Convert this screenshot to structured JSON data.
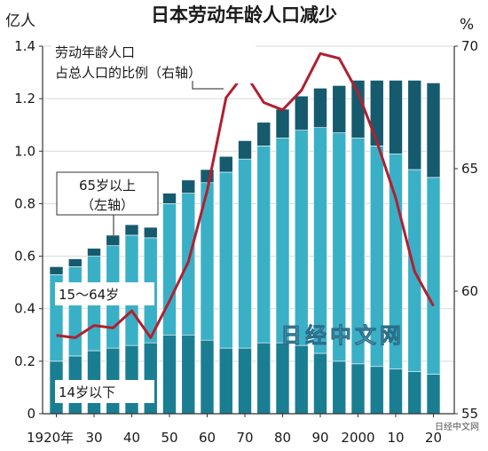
{
  "chart_data": {
    "type": "bar",
    "stacked": true,
    "title": "日本劳动年龄人口减少",
    "left_axis": {
      "unit": "亿人",
      "range": [
        0,
        1.4
      ],
      "ticks": [
        {
          "value": 0,
          "label": "0"
        },
        {
          "value": 0.2,
          "label": "0.2"
        },
        {
          "value": 0.4,
          "label": "0.4"
        },
        {
          "value": 0.6,
          "label": "0.6"
        },
        {
          "value": 0.8,
          "label": "0.8"
        },
        {
          "value": 1.0,
          "label": "1.0"
        },
        {
          "value": 1.2,
          "label": "1.2"
        },
        {
          "value": 1.4,
          "label": "1.4"
        }
      ]
    },
    "right_axis": {
      "unit": "%",
      "range": [
        55,
        70
      ],
      "ticks": [
        {
          "value": 55,
          "label": "55"
        },
        {
          "value": 60,
          "label": "60"
        },
        {
          "value": 65,
          "label": "65"
        },
        {
          "value": 70,
          "label": "70"
        }
      ]
    },
    "x_ticks": [
      {
        "year": 1920,
        "label": "1920年"
      },
      {
        "year": 1930,
        "label": "30"
      },
      {
        "year": 1940,
        "label": "40"
      },
      {
        "year": 1950,
        "label": "50"
      },
      {
        "year": 1960,
        "label": "60"
      },
      {
        "year": 1970,
        "label": "70"
      },
      {
        "year": 1980,
        "label": "80"
      },
      {
        "year": 1990,
        "label": "90"
      },
      {
        "year": 2000,
        "label": "2000"
      },
      {
        "year": 2010,
        "label": "10"
      },
      {
        "year": 2020,
        "label": "20"
      }
    ],
    "x": [
      1920,
      1925,
      1930,
      1935,
      1940,
      1945,
      1950,
      1955,
      1960,
      1965,
      1970,
      1975,
      1980,
      1985,
      1990,
      1995,
      2000,
      2005,
      2010,
      2015,
      2020
    ],
    "series": [
      {
        "name": "14岁以下",
        "axis": "left",
        "color": "#1a7e92",
        "values": [
          0.2,
          0.22,
          0.24,
          0.25,
          0.26,
          0.27,
          0.3,
          0.3,
          0.28,
          0.25,
          0.25,
          0.27,
          0.27,
          0.26,
          0.23,
          0.2,
          0.19,
          0.18,
          0.17,
          0.16,
          0.15
        ]
      },
      {
        "name": "15～64岁",
        "axis": "left",
        "color": "#3ab0c7",
        "values": [
          0.33,
          0.34,
          0.36,
          0.39,
          0.42,
          0.4,
          0.5,
          0.54,
          0.6,
          0.67,
          0.72,
          0.75,
          0.78,
          0.82,
          0.86,
          0.87,
          0.86,
          0.84,
          0.82,
          0.77,
          0.75
        ]
      },
      {
        "name": "65岁以上",
        "axis": "left",
        "color": "#165a6e",
        "values": [
          0.03,
          0.03,
          0.03,
          0.04,
          0.04,
          0.04,
          0.04,
          0.05,
          0.05,
          0.06,
          0.07,
          0.09,
          0.11,
          0.13,
          0.15,
          0.18,
          0.22,
          0.25,
          0.28,
          0.34,
          0.36
        ]
      },
      {
        "name": "劳动年龄人口占总人口的比例",
        "axis": "right",
        "type": "line",
        "color": "#b02030",
        "values": [
          58.2,
          58.1,
          58.6,
          58.5,
          59.2,
          58.1,
          59.6,
          61.2,
          64.1,
          67.9,
          68.9,
          67.7,
          67.4,
          68.2,
          69.7,
          69.5,
          68.1,
          66.1,
          63.8,
          60.8,
          59.4
        ]
      }
    ],
    "annotations": {
      "series1": "14岁以下",
      "series2": "15～64岁",
      "series3_line1": "65岁以上",
      "series3_line2": "（左轴）",
      "ratio_line1": "劳动年龄人口",
      "ratio_line2": "占总人口的比例（右轴）"
    },
    "watermark": "日经中文网",
    "corner_text": "日经中文网"
  }
}
